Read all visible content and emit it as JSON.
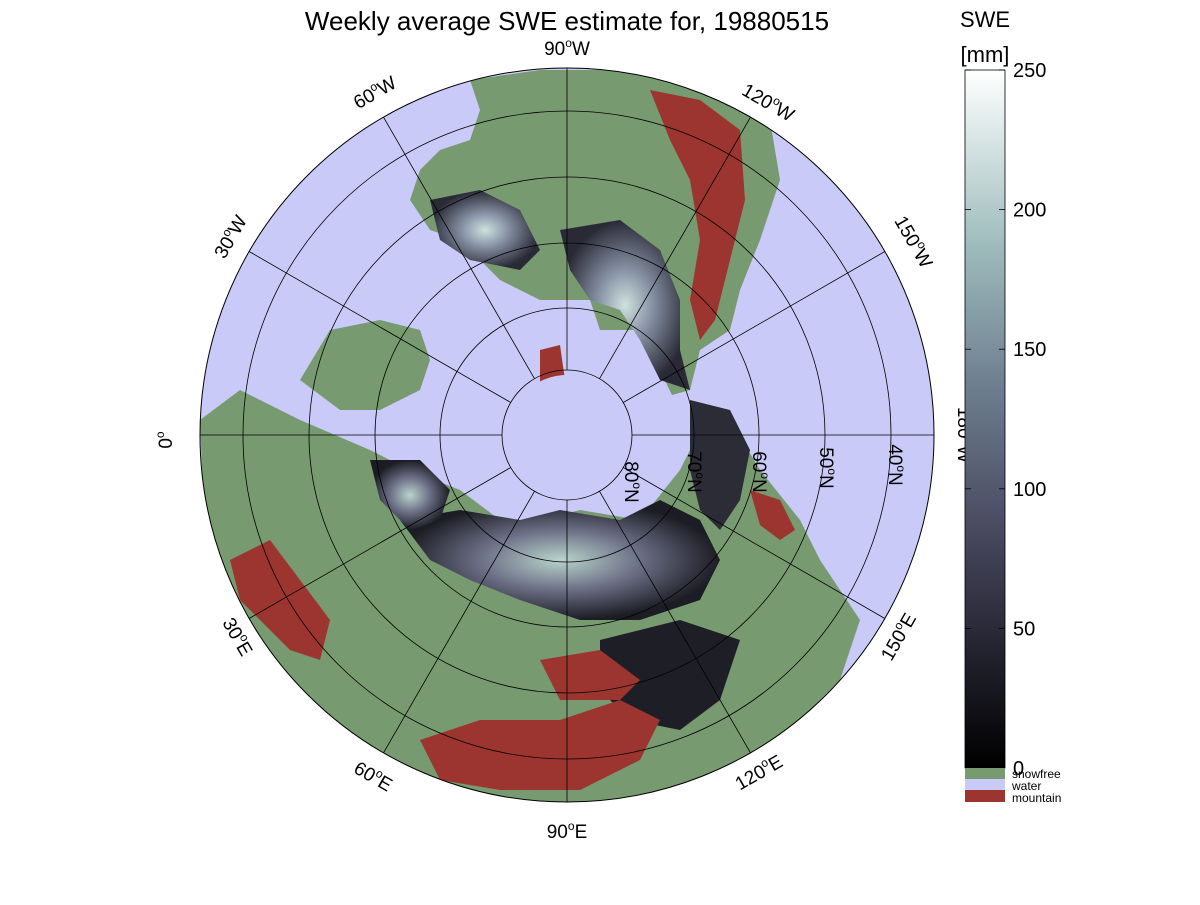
{
  "title": "Weekly average SWE estimate for, 19880515",
  "colorbar": {
    "label_line1": "SWE",
    "label_line2": "[mm]",
    "ticks": [
      0,
      50,
      100,
      150,
      200,
      250
    ],
    "range": [
      0,
      250
    ],
    "legend": [
      {
        "label": "snowfree",
        "color": "#779a70"
      },
      {
        "label": "water",
        "color": "#cacaf9"
      },
      {
        "label": "mountain",
        "color": "#9c3530"
      }
    ]
  },
  "map": {
    "projection": "north polar stereographic",
    "ocean_color": "#cacaf9",
    "land_color": "#779a70",
    "mountain_color": "#9c3530",
    "longitude_labels": [
      {
        "id": "lon-0",
        "base": "0",
        "sup": "o",
        "dir": ""
      },
      {
        "id": "lon-30e",
        "base": "30",
        "sup": "o",
        "dir": "E"
      },
      {
        "id": "lon-60e",
        "base": "60",
        "sup": "o",
        "dir": "E"
      },
      {
        "id": "lon-90e",
        "base": "90",
        "sup": "o",
        "dir": "E"
      },
      {
        "id": "lon-120e",
        "base": "120",
        "sup": "o",
        "dir": "E"
      },
      {
        "id": "lon-150e",
        "base": "150",
        "sup": "o",
        "dir": "E"
      },
      {
        "id": "lon-180w",
        "base": "180",
        "sup": "o",
        "dir": "W"
      },
      {
        "id": "lon-150w",
        "base": "150",
        "sup": "o",
        "dir": "W"
      },
      {
        "id": "lon-120w",
        "base": "120",
        "sup": "o",
        "dir": "W"
      },
      {
        "id": "lon-90w",
        "base": "90",
        "sup": "o",
        "dir": "W"
      },
      {
        "id": "lon-60w",
        "base": "60",
        "sup": "o",
        "dir": "W"
      },
      {
        "id": "lon-30w",
        "base": "30",
        "sup": "o",
        "dir": "W"
      }
    ],
    "latitude_labels": [
      {
        "id": "lat-80n",
        "base": "80",
        "sup": "o",
        "dir": "N"
      },
      {
        "id": "lat-70n",
        "base": "70",
        "sup": "o",
        "dir": "N"
      },
      {
        "id": "lat-60n",
        "base": "60",
        "sup": "o",
        "dir": "N"
      },
      {
        "id": "lat-50n",
        "base": "50",
        "sup": "o",
        "dir": "N"
      },
      {
        "id": "lat-40n",
        "base": "40",
        "sup": "o",
        "dir": "N"
      }
    ]
  }
}
